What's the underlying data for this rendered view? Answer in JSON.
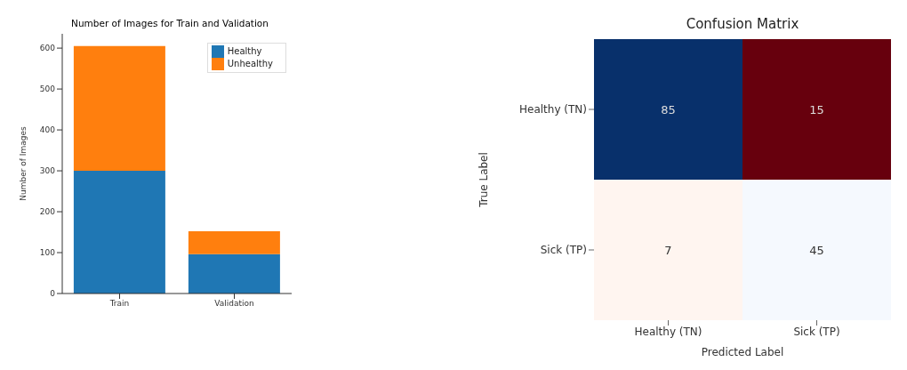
{
  "chart_data": [
    {
      "type": "bar",
      "title": "Number of Images for Train and Validation",
      "ylabel": "Number of Images",
      "categories": [
        "Train",
        "Validation"
      ],
      "stacked": true,
      "series": [
        {
          "name": "Healthy",
          "color": "#1f77b4",
          "values": [
            300,
            96
          ]
        },
        {
          "name": "Unhealthy",
          "color": "#ff7f0e",
          "values": [
            305,
            56
          ]
        }
      ],
      "ylim": [
        0,
        635
      ],
      "yticks": [
        0,
        100,
        200,
        300,
        400,
        500,
        600
      ],
      "legend": "top right"
    },
    {
      "type": "heatmap",
      "title": "Confusion Matrix",
      "xlabel": "Predicted Label",
      "ylabel": "True Label",
      "categories": [
        "Healthy (TN)",
        "Sick (TP)"
      ],
      "y_categories": [
        "Healthy (TN)",
        "Sick (TP)"
      ],
      "cells": [
        [
          85,
          15
        ],
        [
          7,
          45
        ]
      ],
      "data_labels": true,
      "colors": [
        [
          "#08306b",
          "#67000d"
        ],
        [
          "#fff5f0",
          "#f5f9fe"
        ]
      ]
    }
  ]
}
